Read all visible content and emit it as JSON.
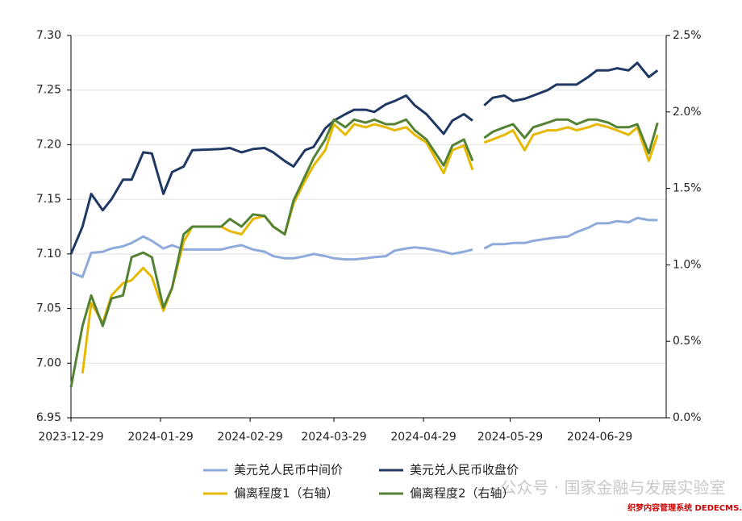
{
  "chart_data": {
    "type": "line",
    "x": [
      "2023-12-29",
      "2024-01-02",
      "2024-01-05",
      "2024-01-09",
      "2024-01-12",
      "2024-01-16",
      "2024-01-19",
      "2024-01-23",
      "2024-01-26",
      "2024-01-30",
      "2024-02-02",
      "2024-02-06",
      "2024-02-09",
      "2024-02-19",
      "2024-02-22",
      "2024-02-26",
      "2024-03-01",
      "2024-03-05",
      "2024-03-08",
      "2024-03-12",
      "2024-03-15",
      "2024-03-19",
      "2024-03-22",
      "2024-03-26",
      "2024-03-29",
      "2024-04-02",
      "2024-04-05",
      "2024-04-09",
      "2024-04-12",
      "2024-04-16",
      "2024-04-19",
      "2024-04-23",
      "2024-04-26",
      "2024-04-30",
      "2024-05-06",
      "2024-05-09",
      "2024-05-13",
      "2024-05-16",
      "2024-05-17",
      "2024-05-20",
      "2024-05-23",
      "2024-05-27",
      "2024-05-30",
      "2024-06-03",
      "2024-06-06",
      "2024-06-11",
      "2024-06-14",
      "2024-06-18",
      "2024-06-21",
      "2024-06-25",
      "2024-06-28",
      "2024-07-02",
      "2024-07-05",
      "2024-07-09",
      "2024-07-12",
      "2024-07-16",
      "2024-07-19"
    ],
    "xlim": [
      "2023-12-29",
      "2024-07-22"
    ],
    "xticks": [
      "2023-12-29",
      "2024-01-29",
      "2024-02-29",
      "2024-03-29",
      "2024-04-29",
      "2024-05-29",
      "2024-06-29"
    ],
    "ylim": [
      6.95,
      7.3
    ],
    "yticks": [
      {
        "value": 6.95,
        "label": "6.95"
      },
      {
        "value": 7.0,
        "label": "7.00"
      },
      {
        "value": 7.05,
        "label": "7.05"
      },
      {
        "value": 7.1,
        "label": "7.10"
      },
      {
        "value": 7.15,
        "label": "7.15"
      },
      {
        "value": 7.2,
        "label": "7.20"
      },
      {
        "value": 7.25,
        "label": "7.25"
      },
      {
        "value": 7.3,
        "label": "7.30"
      }
    ],
    "y2lim": [
      0,
      2.5
    ],
    "y2ticks": [
      {
        "value": 0,
        "label": "0.0%"
      },
      {
        "value": 0.5,
        "label": "0.5%"
      },
      {
        "value": 1.0,
        "label": "1.0%"
      },
      {
        "value": 1.5,
        "label": "1.5%"
      },
      {
        "value": 2.0,
        "label": "2.0%"
      },
      {
        "value": 2.5,
        "label": "2.5%"
      }
    ],
    "grid": true,
    "legend": "bottom",
    "series": [
      {
        "name": "美元兑人民币中间价",
        "color": "#8eaadb",
        "values": [
          7.083,
          7.079,
          7.101,
          7.102,
          7.105,
          7.107,
          7.11,
          7.116,
          7.112,
          7.105,
          7.108,
          7.104,
          7.104,
          7.104,
          7.106,
          7.108,
          7.104,
          7.102,
          7.098,
          7.096,
          7.096,
          7.098,
          7.1,
          7.098,
          7.096,
          7.095,
          7.095,
          7.096,
          7.097,
          7.098,
          7.103,
          7.105,
          7.106,
          7.105,
          7.102,
          7.1,
          7.102,
          7.104,
          null,
          7.105,
          7.109,
          7.109,
          7.11,
          7.11,
          7.112,
          7.114,
          7.115,
          7.116,
          7.12,
          7.124,
          7.128,
          7.128,
          7.13,
          7.129,
          7.133,
          7.131,
          7.131
        ]
      },
      {
        "name": "美元兑人民币收盘价",
        "color": "#1f3864",
        "values": [
          7.1,
          7.125,
          7.155,
          7.14,
          7.15,
          7.168,
          7.168,
          7.193,
          7.192,
          7.155,
          7.175,
          7.18,
          7.195,
          7.196,
          7.197,
          7.193,
          7.196,
          7.197,
          7.193,
          7.185,
          7.18,
          7.195,
          7.198,
          7.215,
          7.222,
          7.228,
          7.232,
          7.232,
          7.23,
          7.237,
          7.24,
          7.245,
          7.236,
          7.228,
          7.21,
          7.222,
          7.228,
          7.222,
          null,
          7.236,
          7.243,
          7.245,
          7.24,
          7.242,
          7.245,
          7.25,
          7.255,
          7.255,
          7.255,
          7.262,
          7.268,
          7.268,
          7.27,
          7.268,
          7.275,
          7.262,
          7.268
        ]
      },
      {
        "name": "偏离程度1（右轴）",
        "color": "#e6b800",
        "axis": "y2",
        "values": [
          null,
          0.29,
          0.75,
          0.62,
          0.8,
          0.88,
          0.9,
          0.98,
          0.92,
          0.7,
          0.85,
          1.15,
          1.25,
          1.25,
          1.22,
          1.2,
          1.3,
          1.32,
          1.25,
          1.2,
          1.4,
          1.55,
          1.65,
          1.75,
          1.92,
          1.85,
          1.92,
          1.9,
          1.92,
          1.9,
          1.88,
          1.9,
          1.85,
          1.8,
          1.6,
          1.75,
          1.78,
          1.62,
          null,
          1.8,
          1.82,
          1.85,
          1.88,
          1.75,
          1.85,
          1.88,
          1.88,
          1.9,
          1.88,
          1.9,
          1.92,
          1.9,
          1.88,
          1.85,
          1.9,
          1.68,
          1.85
        ]
      },
      {
        "name": "偏离程度2（右轴）",
        "color": "#548235",
        "axis": "y2",
        "values": [
          0.2,
          0.6,
          0.8,
          0.6,
          0.78,
          0.8,
          1.05,
          1.08,
          1.05,
          0.72,
          0.85,
          1.2,
          1.25,
          1.25,
          1.3,
          1.25,
          1.33,
          1.32,
          1.25,
          1.2,
          1.42,
          1.58,
          1.7,
          1.82,
          1.95,
          1.9,
          1.95,
          1.93,
          1.95,
          1.92,
          1.92,
          1.95,
          1.88,
          1.82,
          1.65,
          1.78,
          1.82,
          1.68,
          null,
          1.83,
          1.87,
          1.9,
          1.92,
          1.83,
          1.9,
          1.93,
          1.95,
          1.95,
          1.92,
          1.95,
          1.95,
          1.93,
          1.9,
          1.9,
          1.92,
          1.73,
          1.93
        ]
      }
    ],
    "annotations": [
      "公众号 · 国家金融与发展实验室",
      "织梦内容管理系统 DEDECMS.COM"
    ]
  }
}
